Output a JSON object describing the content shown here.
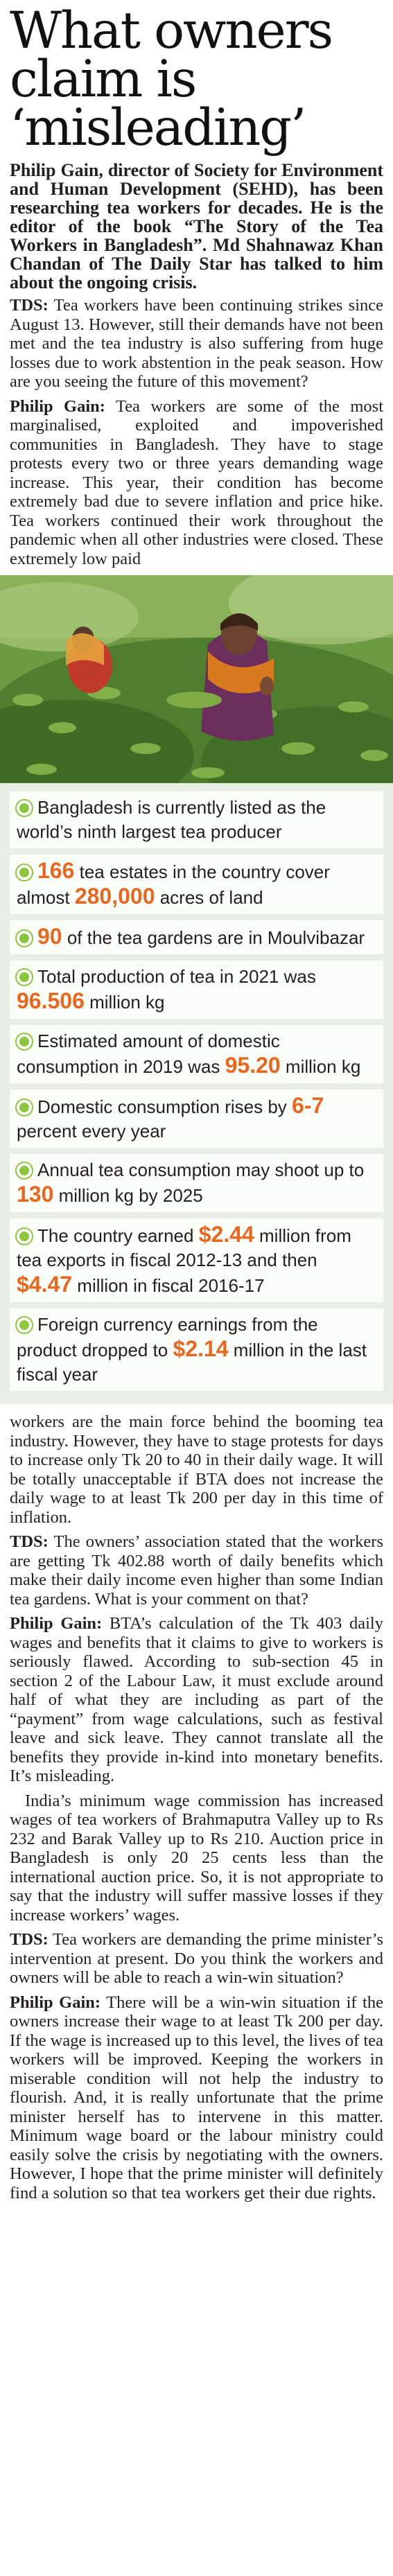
{
  "headline": {
    "line1": "What owners",
    "line2": "claim is",
    "line3": "‘misleading’"
  },
  "intro": "Philip Gain, director of Society for Environment and Human Development (SEHD), has been researching tea workers for decades. He is the editor of the book “The Story of the Tea Workers in Bangladesh”. Md Shahnawaz Khan Chandan of The Daily Star has talked to him about the ongoing crisis.",
  "qa1": {
    "q_label": "TDS:",
    "q_text": " Tea workers have been continuing strikes since August 13. However, still their demands have not been met and the tea industry is also suffering from huge losses due to work abstention in the peak season. How are you seeing the future of this movement?",
    "a_label": "Philip Gain:",
    "a_text": " Tea workers are some of the most marginalised, exploited and impoverished communities in Bangladesh. They have to stage protests every two or three years demanding wage increase. This year, their condition has become extremely bad due to severe inflation and price hike. Tea workers continued their work throughout the pandemic when all other industries were closed. These extremely low paid"
  },
  "photo": {
    "icon": "tea-garden-photo"
  },
  "facts": [
    {
      "pre": "Bangladesh is currently listed as the world’s ninth largest tea producer",
      "num1": "",
      "mid": "",
      "num2": "",
      "post": ""
    },
    {
      "pre": "",
      "num1": "166",
      "mid": " tea estates in the country cover almost ",
      "num2": "280,000",
      "post": " acres of land"
    },
    {
      "pre": "",
      "num1": "90",
      "mid": " of the tea gardens are in Moulvibazar",
      "num2": "",
      "post": ""
    },
    {
      "pre": "Total production of tea in 2021 was ",
      "num1": "96.506",
      "mid": " million kg",
      "num2": "",
      "post": ""
    },
    {
      "pre": "Estimated amount of domestic consumption in 2019 was ",
      "num1": "95.20",
      "mid": " million kg",
      "num2": "",
      "post": ""
    },
    {
      "pre": "Domestic consumption rises by ",
      "num1": "6-7",
      "mid": " percent every year",
      "num2": "",
      "post": ""
    },
    {
      "pre": "Annual tea consumption may shoot up to ",
      "num1": "130",
      "mid": " million kg by 2025",
      "num2": "",
      "post": ""
    },
    {
      "pre": "The country earned ",
      "num1": "$2.44",
      "mid": " million from tea exports in fiscal 2012-13 and then ",
      "num2": "$4.47",
      "post": " million in fiscal 2016-17"
    },
    {
      "pre": "Foreign currency earnings from the product dropped to ",
      "num1": "$2.14",
      "mid": " million in the last fiscal year",
      "num2": "",
      "post": ""
    }
  ],
  "body2": {
    "p1": "workers are the main force behind the booming tea industry. However, they have to stage protests for days to increase only Tk 20 to 40 in their daily wage. It will be totally unacceptable if BTA does not increase the daily wage to at least Tk 200 per day in this time of inflation.",
    "q2_label": "TDS:",
    "q2_text": " The owners’ association stated that the workers are getting Tk 402.88 worth of daily benefits which make their daily income even higher than some Indian tea gardens. What is your comment on that?",
    "a2_label": "Philip Gain:",
    "a2_text": " BTA’s calculation of the Tk 403 daily wages and benefits that it claims to give to workers is seriously flawed. According to sub-section 45 in section 2 of the Labour Law, it must exclude around half of what they are including as part of the “payment” from wage calculations, such as festival leave and sick leave. They cannot translate all the benefits they provide in-kind into monetary benefits. It’s misleading.",
    "p_india": "India’s minimum wage commission has increased wages of tea workers of Brahmaputra Valley up to Rs 232 and Barak Valley up to Rs 210. Auction price in Bangladesh is only 20 25 cents less than the international auction price. So, it is not appropriate to say that the industry will suffer massive losses if they increase workers’ wages.",
    "q3_label": "TDS:",
    "q3_text": " Tea workers are demanding the prime minister’s intervention at present. Do you think the workers and owners will be able to reach a win-win situation?",
    "a3_label": "Philip Gain:",
    "a3_text": " There will be a win-win situation if the owners increase their wage to at least Tk 200 per day. If the wage is increased up to this level, the lives of tea workers will be improved. Keeping the workers in miserable condition will not help the industry to flourish. And, it is really unfortunate that the prime minister herself has to intervene in this matter. Minimum wage board or the labour ministry could easily solve the crisis by negotiating with the owners. However, I hope that the prime minister will definitely find a solution so that tea workers get their due rights."
  }
}
